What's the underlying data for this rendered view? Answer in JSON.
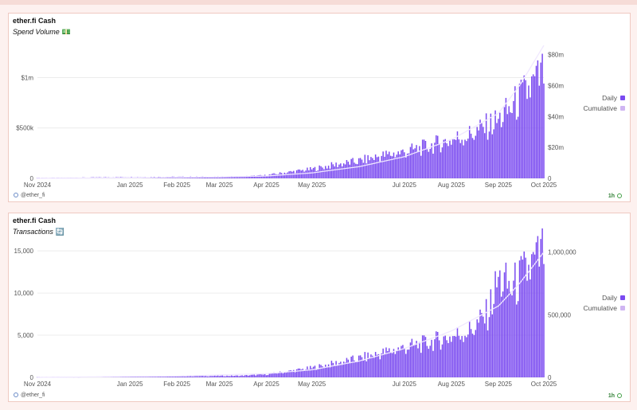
{
  "colors": {
    "daily": "#7a4af0",
    "cumulative": "#cfb5f2",
    "cumulative_line": "#f0e8ff"
  },
  "panels": [
    {
      "title": "ether.fi Cash",
      "subtitle": "Spend Volume",
      "subtitle_emoji": "💵",
      "legend": [
        "Daily",
        "Cumulative"
      ],
      "handle": "@ether_fi",
      "freshness": "1h"
    },
    {
      "title": "ether.fi Cash",
      "subtitle": "Transactions",
      "subtitle_emoji": "🔄",
      "legend": [
        "Daily",
        "Cumulative"
      ],
      "handle": "@ether_fi",
      "freshness": "1h"
    }
  ],
  "chart_data": [
    {
      "type": "bar",
      "title": "ether.fi Cash",
      "subtitle": "Spend Volume",
      "x_range": [
        "2024-11-01",
        "2025-10-01"
      ],
      "x_ticks": [
        "Nov 2024",
        "Jan 2025",
        "Feb 2025",
        "Mar 2025",
        "Apr 2025",
        "May 2025",
        "Jul 2025",
        "Aug 2025",
        "Sep 2025",
        "Oct 2025"
      ],
      "y_left": {
        "ticks": [
          "0",
          "$500k",
          "$1m"
        ],
        "tick_values": [
          0,
          500000,
          1000000
        ],
        "range": [
          0,
          1320000
        ]
      },
      "y_right": {
        "ticks": [
          "0",
          "$20m",
          "$40m",
          "$60m",
          "$80m"
        ],
        "tick_values": [
          0,
          20000000,
          40000000,
          60000000,
          80000000
        ],
        "range": [
          0,
          86000000
        ]
      },
      "grid": true,
      "legend_position": "right",
      "series": [
        {
          "name": "Daily",
          "axis": "left",
          "style": "bars",
          "x": [
            "2024-11-15",
            "2024-12-01",
            "2024-12-15",
            "2025-01-01",
            "2025-01-15",
            "2025-02-01",
            "2025-02-15",
            "2025-03-01",
            "2025-03-15",
            "2025-04-01",
            "2025-04-15",
            "2025-05-01",
            "2025-05-15",
            "2025-06-01",
            "2025-06-15",
            "2025-07-01",
            "2025-07-15",
            "2025-08-01",
            "2025-08-15",
            "2025-09-01",
            "2025-09-10",
            "2025-09-20",
            "2025-09-28",
            "2025-10-01"
          ],
          "values": [
            5000,
            8000,
            10000,
            12000,
            14000,
            15000,
            15000,
            16000,
            18000,
            30000,
            60000,
            90000,
            130000,
            170000,
            220000,
            260000,
            310000,
            380000,
            440000,
            570000,
            700000,
            860000,
            980000,
            1050000
          ]
        },
        {
          "name": "Cumulative",
          "axis": "right",
          "style": "line",
          "x": [
            "2024-11-01",
            "2025-01-01",
            "2025-03-01",
            "2025-04-01",
            "2025-05-01",
            "2025-06-01",
            "2025-07-01",
            "2025-08-01",
            "2025-09-01",
            "2025-09-15",
            "2025-10-01"
          ],
          "values": [
            0,
            300000,
            900000,
            1500000,
            3500000,
            7500000,
            14000000,
            25000000,
            42000000,
            60000000,
            86000000
          ]
        }
      ]
    },
    {
      "type": "bar",
      "title": "ether.fi Cash",
      "subtitle": "Transactions",
      "x_range": [
        "2024-11-01",
        "2025-10-01"
      ],
      "x_ticks": [
        "Nov 2024",
        "Jan 2025",
        "Feb 2025",
        "Mar 2025",
        "Apr 2025",
        "May 2025",
        "Jul 2025",
        "Aug 2025",
        "Sep 2025",
        "Oct 2025"
      ],
      "y_left": {
        "ticks": [
          "0",
          "5,000",
          "10,000",
          "15,000"
        ],
        "tick_values": [
          0,
          5000,
          10000,
          15000
        ],
        "range": [
          0,
          15300
        ]
      },
      "y_right": {
        "ticks": [
          "0",
          "500,000",
          "1,000,000"
        ],
        "tick_values": [
          0,
          500000,
          1000000
        ],
        "range": [
          0,
          1030000
        ]
      },
      "grid": true,
      "legend_position": "right",
      "series": [
        {
          "name": "Daily",
          "axis": "left",
          "style": "bars",
          "x": [
            "2024-11-15",
            "2024-12-15",
            "2025-01-15",
            "2025-02-15",
            "2025-03-15",
            "2025-04-01",
            "2025-04-15",
            "2025-05-01",
            "2025-05-15",
            "2025-06-01",
            "2025-06-15",
            "2025-07-01",
            "2025-07-15",
            "2025-08-01",
            "2025-08-15",
            "2025-08-25",
            "2025-09-01",
            "2025-09-10",
            "2025-09-20",
            "2025-09-28",
            "2025-10-01"
          ],
          "values": [
            50,
            80,
            100,
            150,
            200,
            350,
            700,
            1100,
            1600,
            2200,
            2800,
            3500,
            4000,
            4800,
            5700,
            7500,
            11500,
            10500,
            12500,
            14000,
            15000
          ]
        },
        {
          "name": "Cumulative",
          "axis": "right",
          "style": "line",
          "x": [
            "2024-11-01",
            "2025-02-01",
            "2025-04-01",
            "2025-05-01",
            "2025-06-01",
            "2025-07-01",
            "2025-08-01",
            "2025-09-01",
            "2025-09-15",
            "2025-10-01"
          ],
          "values": [
            0,
            10000,
            30000,
            60000,
            130000,
            230000,
            370000,
            570000,
            750000,
            1000000
          ]
        }
      ]
    }
  ]
}
